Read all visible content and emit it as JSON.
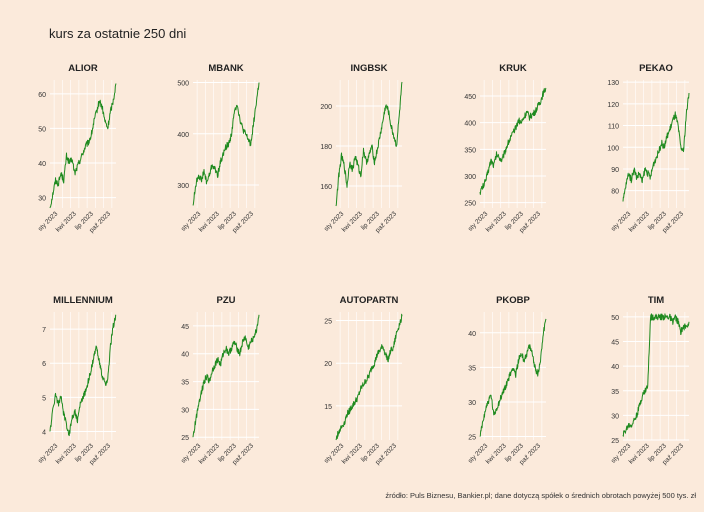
{
  "title": "kurs za ostatnie 250 dni",
  "source": "źródło: Puls Biznesu, Bankier.pl; dane dotyczą spółek o średnich obrotach powyżej 500 tys. zł",
  "colors": {
    "background": "#fbeadb",
    "line": "#1f8a1f",
    "grid": "#ffffff",
    "text": "#333333"
  },
  "chart_data": [
    {
      "type": "line",
      "title": "ALIOR",
      "x_tick_labels": [
        "sty 2023",
        "kwi 2023",
        "lip 2023",
        "paź 2023"
      ],
      "y_ticks": [
        30,
        40,
        50,
        60
      ],
      "ylim": [
        27,
        64
      ],
      "series": [
        {
          "values": [
            27,
            31,
            35,
            34,
            37,
            35,
            42,
            40,
            41,
            37,
            39,
            41,
            43,
            45,
            46,
            48,
            52,
            55,
            58,
            56,
            52,
            50,
            55,
            58,
            63
          ]
        }
      ]
    },
    {
      "type": "line",
      "title": "MBANK",
      "x_tick_labels": [
        "sty 2023",
        "kwi 2023",
        "lip 2023",
        "paź 2023"
      ],
      "y_ticks": [
        300,
        400,
        500
      ],
      "ylim": [
        255,
        505
      ],
      "series": [
        {
          "values": [
            260,
            300,
            320,
            310,
            325,
            305,
            320,
            340,
            330,
            320,
            345,
            360,
            375,
            380,
            400,
            440,
            460,
            430,
            410,
            400,
            390,
            380,
            420,
            460,
            500
          ]
        }
      ]
    },
    {
      "type": "line",
      "title": "INGBSK",
      "x_tick_labels": [
        "sty 2023",
        "kwi 2023",
        "lip 2023",
        "paź 2023"
      ],
      "y_ticks": [
        160,
        180,
        200
      ],
      "ylim": [
        149,
        213
      ],
      "series": [
        {
          "values": [
            150,
            165,
            175,
            170,
            160,
            172,
            168,
            175,
            170,
            165,
            178,
            172,
            175,
            180,
            172,
            178,
            185,
            192,
            200,
            198,
            190,
            185,
            180,
            195,
            212
          ]
        }
      ]
    },
    {
      "type": "line",
      "title": "KRUK",
      "x_tick_labels": [
        "sty 2023",
        "kwi 2023",
        "lip 2023",
        "paź 2023"
      ],
      "y_ticks": [
        250,
        300,
        350,
        400,
        450
      ],
      "ylim": [
        240,
        480
      ],
      "series": [
        {
          "values": [
            270,
            280,
            290,
            310,
            330,
            320,
            340,
            335,
            330,
            345,
            360,
            370,
            380,
            390,
            405,
            400,
            410,
            420,
            410,
            415,
            420,
            430,
            440,
            455,
            465
          ]
        }
      ]
    },
    {
      "type": "line",
      "title": "PEKAO",
      "x_tick_labels": [
        "sty 2023",
        "kwi 2023",
        "lip 2023",
        "paź 2023"
      ],
      "y_ticks": [
        80,
        90,
        100,
        110,
        120,
        130
      ],
      "ylim": [
        72,
        131
      ],
      "series": [
        {
          "values": [
            75,
            82,
            88,
            85,
            90,
            86,
            88,
            84,
            90,
            88,
            86,
            92,
            95,
            98,
            102,
            100,
            105,
            108,
            112,
            115,
            110,
            100,
            98,
            115,
            125
          ]
        }
      ]
    },
    {
      "type": "line",
      "title": "MILLENNIUM",
      "x_tick_labels": [
        "sty 2023",
        "kwi 2023",
        "lip 2023",
        "paź 2023"
      ],
      "y_ticks": [
        4,
        5,
        6,
        7
      ],
      "ylim": [
        3.75,
        7.5
      ],
      "series": [
        {
          "values": [
            4.0,
            4.6,
            5.1,
            4.8,
            5.0,
            4.5,
            4.2,
            3.9,
            4.4,
            4.6,
            4.3,
            4.8,
            5.0,
            5.2,
            5.5,
            5.8,
            6.2,
            6.5,
            6.0,
            5.6,
            5.4,
            5.5,
            6.5,
            7.1,
            7.4
          ]
        }
      ]
    },
    {
      "type": "line",
      "title": "PZU",
      "x_tick_labels": [
        "sty 2023",
        "kwi 2023",
        "lip 2023",
        "paź 2023"
      ],
      "y_ticks": [
        25,
        30,
        35,
        40,
        45
      ],
      "ylim": [
        24.5,
        47.5
      ],
      "series": [
        {
          "values": [
            25,
            28,
            31,
            33,
            35,
            36,
            35,
            37,
            38,
            39,
            38,
            40,
            41,
            40,
            41,
            42,
            41,
            40,
            42,
            43,
            41,
            42,
            43,
            44,
            47
          ]
        }
      ]
    },
    {
      "type": "line",
      "title": "AUTOPARTN",
      "x_tick_labels": [
        "sty 2023",
        "kwi 2023",
        "lip 2023",
        "paź 2023"
      ],
      "y_ticks": [
        15,
        20,
        25
      ],
      "ylim": [
        11,
        26
      ],
      "series": [
        {
          "values": [
            11,
            12,
            12.5,
            13,
            14,
            14.5,
            15,
            15.5,
            16,
            17,
            17.5,
            18,
            18.5,
            19.5,
            20,
            21,
            21.5,
            22,
            21,
            20.5,
            21.5,
            22,
            23.5,
            24.5,
            25.5
          ]
        }
      ]
    },
    {
      "type": "line",
      "title": "PKOBP",
      "x_tick_labels": [
        "sty 2023",
        "kwi 2023",
        "lip 2023",
        "paź 2023"
      ],
      "y_ticks": [
        25,
        30,
        35,
        40
      ],
      "ylim": [
        24.5,
        43
      ],
      "series": [
        {
          "values": [
            25,
            27,
            29,
            30,
            31,
            28,
            29,
            30,
            31,
            32,
            33,
            34,
            35,
            34,
            36,
            37,
            36,
            37,
            38,
            37,
            35,
            34,
            36,
            40,
            42
          ]
        }
      ]
    },
    {
      "type": "line",
      "title": "TIM",
      "x_tick_labels": [
        "sty 2023",
        "kwi 2023",
        "lip 2023",
        "paź 2023"
      ],
      "y_ticks": [
        25,
        30,
        35,
        40,
        45,
        50
      ],
      "ylim": [
        25,
        51
      ],
      "series": [
        {
          "values": [
            26,
            27,
            28,
            28,
            29,
            30,
            32,
            34,
            35,
            36,
            50,
            50,
            50,
            50,
            50,
            50,
            50,
            50,
            49,
            50,
            49,
            47,
            48,
            48,
            49
          ]
        }
      ]
    }
  ]
}
